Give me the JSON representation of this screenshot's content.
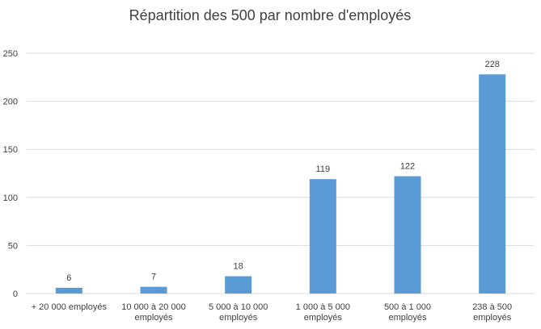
{
  "chart_data": {
    "type": "bar",
    "title": "Répartition des 500 par nombre d'employés",
    "xlabel": "",
    "ylabel": "",
    "categories": [
      "+ 20 000 employés",
      "10 000 à 20 000 employés",
      "5 000 à 10 000 employés",
      "1 000 à 5 000 employés",
      "500 à 1 000 employés",
      "238 à 500 employés"
    ],
    "values": [
      6,
      7,
      18,
      119,
      122,
      228
    ],
    "data_labels": [
      "6",
      "7",
      "18",
      "119",
      "122",
      "228"
    ],
    "yticks": [
      "0",
      "50",
      "100",
      "150",
      "200",
      "250"
    ],
    "ylim": [
      0,
      250
    ],
    "grid": true,
    "legend": "none",
    "bar_color": "#5b9bd5"
  }
}
